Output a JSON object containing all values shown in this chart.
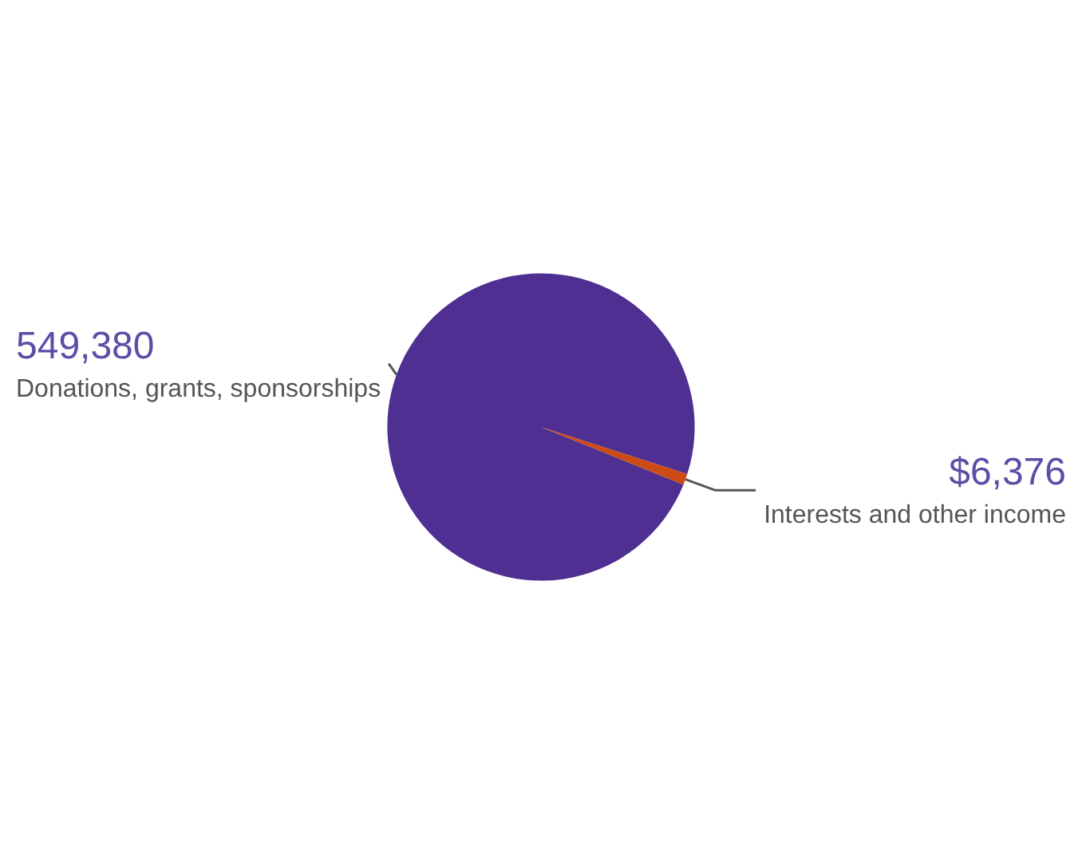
{
  "chart_data": {
    "type": "pie",
    "categories": [
      "Donations, grants, sponsorships",
      "Interests and other income"
    ],
    "values": [
      549380,
      6376
    ],
    "value_labels": [
      "549,380",
      "$6,376"
    ],
    "colors": [
      "#4f2f91",
      "#cc4a14"
    ],
    "legend": false
  }
}
